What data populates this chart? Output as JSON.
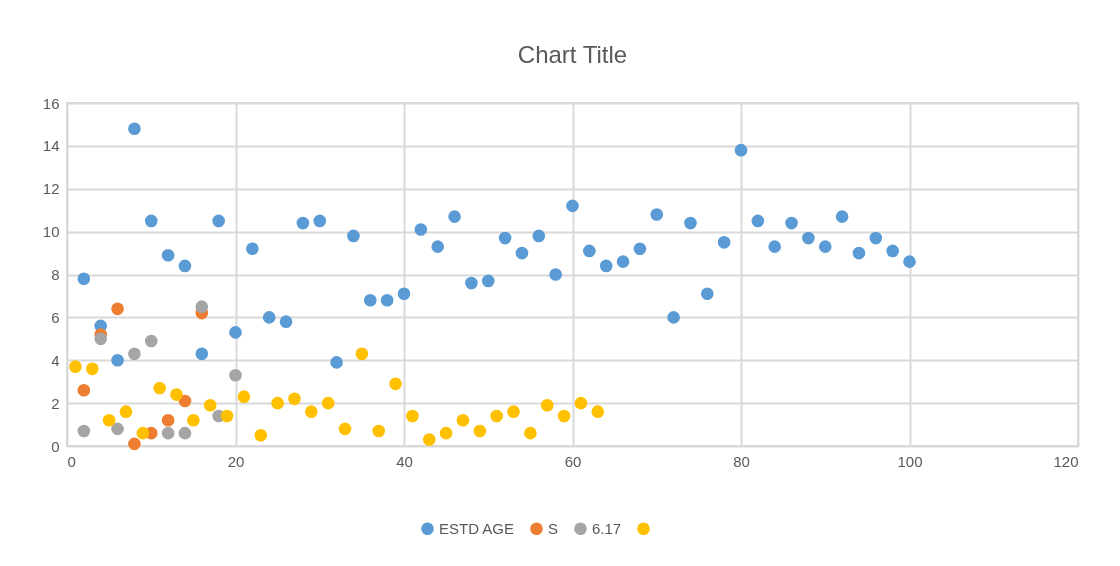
{
  "chart_data": {
    "type": "scatter",
    "title": "Chart Title",
    "xlim": [
      0,
      120
    ],
    "xticks": [
      0,
      20,
      40,
      60,
      80,
      100,
      120
    ],
    "ylim": [
      0,
      16
    ],
    "yticks": [
      0,
      2,
      4,
      6,
      8,
      10,
      12,
      14,
      16
    ],
    "grid": true,
    "legend": "bottom",
    "marker": "circle",
    "series": [
      {
        "name": "ESTD AGE",
        "color": "#5b9bd5",
        "x": [
          2,
          4,
          6,
          8,
          10,
          12,
          14,
          16,
          18,
          20,
          22,
          24,
          26,
          28,
          30,
          32,
          34,
          36,
          38,
          40,
          42,
          44,
          46,
          48,
          50,
          52,
          54,
          56,
          58,
          60,
          62,
          64,
          66,
          68,
          70,
          72,
          74,
          76,
          78,
          80,
          82,
          84,
          86,
          88,
          90,
          92,
          94,
          96,
          98,
          100
        ],
        "values": [
          7.8,
          5.6,
          4.0,
          14.8,
          10.5,
          8.9,
          8.4,
          4.3,
          10.5,
          5.3,
          9.2,
          6.0,
          5.8,
          10.4,
          10.5,
          3.9,
          9.8,
          6.8,
          6.8,
          7.1,
          10.1,
          9.3,
          10.7,
          7.6,
          7.7,
          9.7,
          9.0,
          9.8,
          8.0,
          11.2,
          9.1,
          8.4,
          8.6,
          9.2,
          10.8,
          6.0,
          10.4,
          7.1,
          9.5,
          13.8,
          10.5,
          9.3,
          10.4,
          9.7,
          9.3,
          10.7,
          9.0,
          9.7,
          9.1,
          8.6
        ]
      },
      {
        "name": "S",
        "color": "#ed7d31",
        "x": [
          2,
          4,
          6,
          8,
          10,
          12,
          14,
          16
        ],
        "values": [
          2.6,
          5.2,
          6.4,
          0.1,
          0.6,
          1.2,
          2.1,
          6.2
        ]
      },
      {
        "name": "6.17",
        "color": "#a5a5a5",
        "x": [
          2,
          4,
          6,
          8,
          10,
          12,
          14,
          16,
          18,
          20
        ],
        "values": [
          0.7,
          5.0,
          0.8,
          4.3,
          4.9,
          0.6,
          0.6,
          6.5,
          1.4,
          3.3
        ]
      },
      {
        "color": "#ffc000",
        "x": [
          1,
          3,
          5,
          7,
          9,
          11,
          13,
          15,
          17,
          19,
          21,
          23,
          25,
          27,
          29,
          31,
          33,
          35,
          37,
          39,
          41,
          43,
          45,
          47,
          49,
          51,
          53,
          55,
          57,
          59,
          61,
          63
        ],
        "values": [
          3.7,
          3.6,
          1.2,
          1.6,
          0.6,
          2.7,
          2.4,
          1.2,
          1.9,
          1.4,
          2.3,
          0.5,
          2.0,
          2.2,
          1.6,
          2.0,
          0.8,
          4.3,
          0.7,
          2.9,
          1.4,
          0.3,
          0.6,
          1.2,
          0.7,
          1.4,
          1.6,
          0.6,
          1.9,
          1.4,
          2.0,
          1.6
        ]
      }
    ]
  }
}
